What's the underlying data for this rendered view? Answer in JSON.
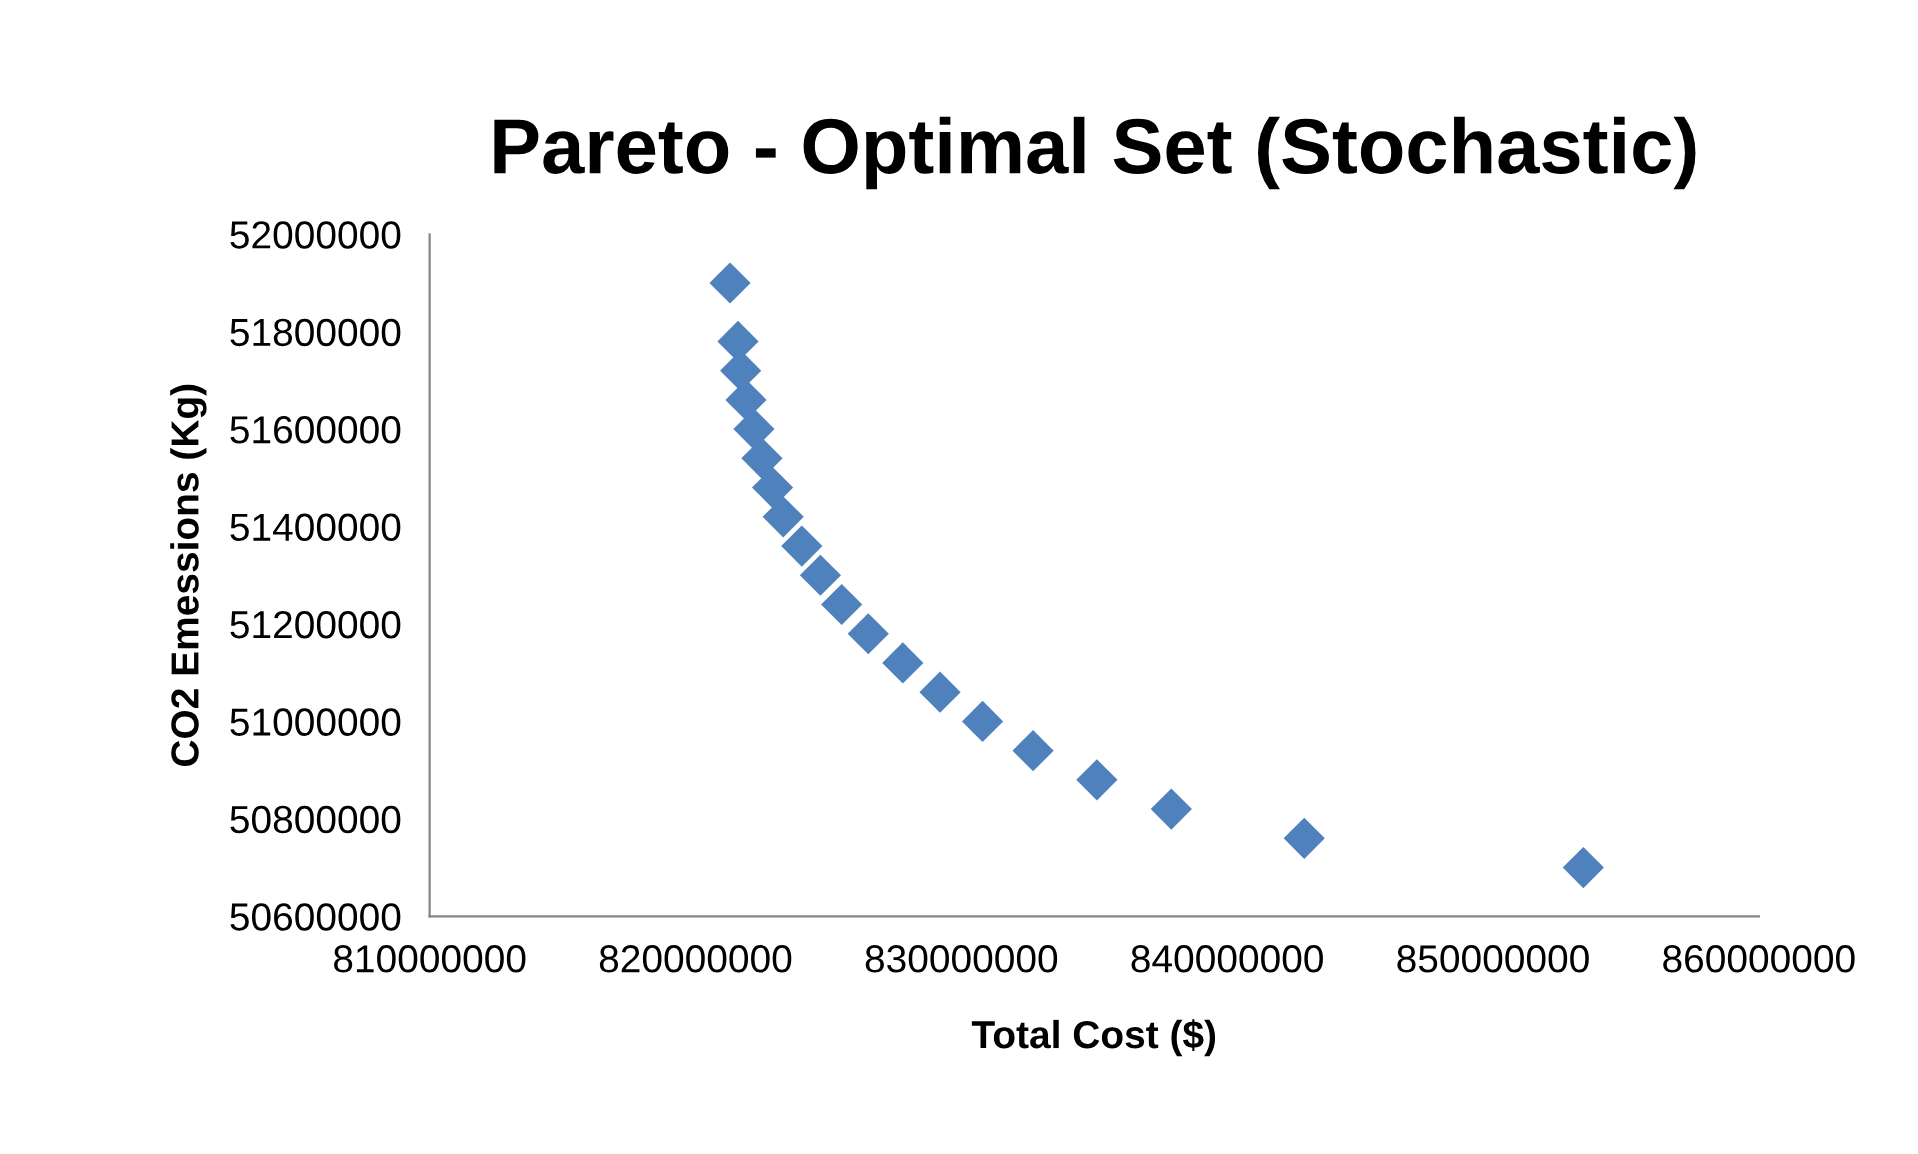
{
  "chart_data": {
    "type": "scatter",
    "title": "Pareto - Optimal Set (Stochastic)",
    "xlabel": "Total Cost ($)",
    "ylabel": "CO2 Emessions (Kg)",
    "x": [
      821300000,
      821600000,
      821700000,
      821900000,
      822200000,
      822500000,
      822900000,
      823300000,
      824000000,
      824700000,
      825500000,
      826500000,
      827800000,
      829200000,
      830800000,
      832700000,
      835100000,
      837900000,
      842900000,
      853400000
    ],
    "series": [
      {
        "color": "#4f81bd",
        "values": [
          51900000,
          51780000,
          51720000,
          51660000,
          51600000,
          51540000,
          51480000,
          51420000,
          51360000,
          51300000,
          51240000,
          51180000,
          51120000,
          51060000,
          51000000,
          50940000,
          50880000,
          50820000,
          50760000,
          50700000
        ]
      }
    ],
    "marker": "diamond",
    "grid": false,
    "legend": false,
    "xlim": [
      810000000,
      860000000
    ],
    "xticks": [
      810000000,
      820000000,
      830000000,
      840000000,
      850000000,
      860000000
    ],
    "ylim": [
      50600000,
      52000000
    ],
    "yticks": [
      50600000,
      50800000,
      51000000,
      51200000,
      51400000,
      51600000,
      51800000,
      52000000
    ]
  }
}
